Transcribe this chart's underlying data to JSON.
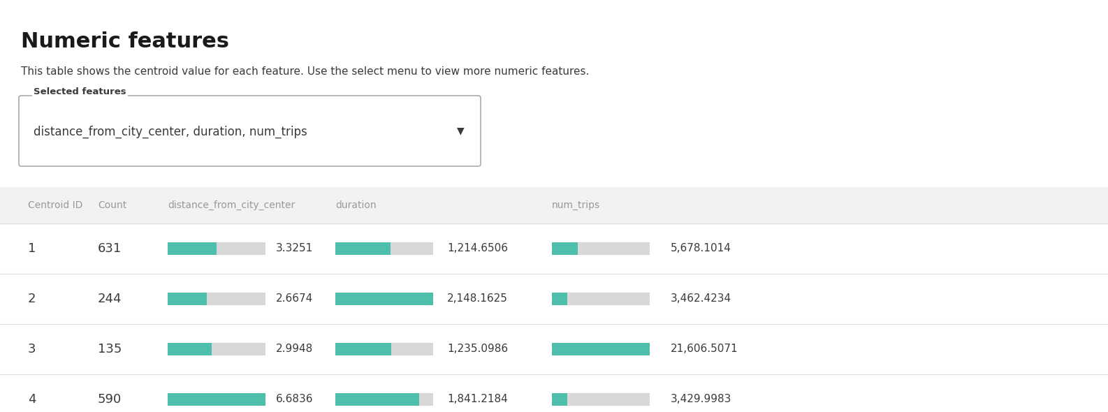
{
  "title": "Numeric features",
  "subtitle": "This table shows the centroid value for each feature. Use the select menu to view more numeric features.",
  "dropdown_label": "Selected features",
  "dropdown_text": "distance_from_city_center, duration, num_trips",
  "rows": [
    {
      "id": 1,
      "count": 631,
      "distance": 3.3251,
      "duration": 1214.6506,
      "num_trips": 5678.1014
    },
    {
      "id": 2,
      "count": 244,
      "distance": 2.6674,
      "duration": 2148.1625,
      "num_trips": 3462.4234
    },
    {
      "id": 3,
      "count": 135,
      "distance": 2.9948,
      "duration": 1235.0986,
      "num_trips": 21606.5071
    },
    {
      "id": 4,
      "count": 590,
      "distance": 6.6836,
      "duration": 1841.2184,
      "num_trips": 3429.9983
    }
  ],
  "distance_max": 6.6836,
  "duration_max": 2148.1625,
  "num_trips_max": 21606.5071,
  "bar_color": "#4DBFAA",
  "bar_bg_color": "#D8D8D8",
  "bg_color": "#FFFFFF",
  "header_bg": "#F2F2F2",
  "row_sep_color": "#DEDEDE",
  "text_color": "#3A3A3A",
  "header_text_color": "#999999",
  "title_color": "#1A1A1A",
  "figwidth": 15.86,
  "figheight": 5.9,
  "dpi": 100
}
